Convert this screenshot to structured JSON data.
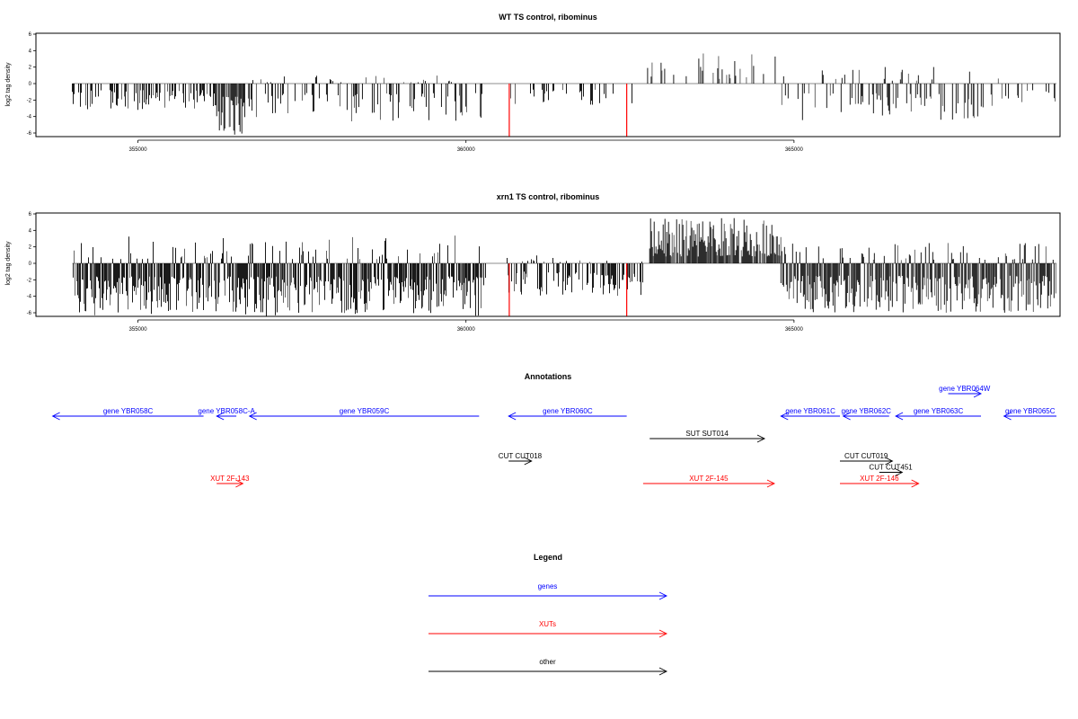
{
  "chart_data": [
    {
      "type": "bar",
      "title": "WT TS control, ribominus",
      "xlabel": "",
      "ylabel": "log2 tag density",
      "xlim": [
        353500,
        369000
      ],
      "ylim": [
        -6,
        6
      ],
      "x_ticks": [
        355000,
        360000,
        365000
      ],
      "x_tick_labels": [
        "355000",
        "360000",
        "365000"
      ],
      "y_ticks": [
        -6,
        -4,
        -2,
        0,
        2,
        4,
        6
      ],
      "y_tick_labels": [
        "-6",
        "-4",
        "-2",
        "0",
        "2",
        "4",
        "6"
      ],
      "baseline_range": [
        354000,
        369000
      ],
      "highlight_color": "#ff0000",
      "highlight_x": [
        360660,
        362450
      ],
      "highlight_y": [
        -6.4,
        -6.4
      ],
      "segments": [
        {
          "start": 354000,
          "end": 356200,
          "density": 0.42,
          "min": -3.2,
          "max": 0,
          "seed": 11
        },
        {
          "start": 356200,
          "end": 356600,
          "density": 0.8,
          "min": -6.3,
          "max": 0,
          "seed": 12
        },
        {
          "start": 356600,
          "end": 360300,
          "density": 0.38,
          "min": -4.6,
          "max": 1.0,
          "seed": 13
        },
        {
          "start": 360600,
          "end": 362700,
          "density": 0.2,
          "min": -2.6,
          "max": 0,
          "seed": 14
        },
        {
          "start": 362700,
          "end": 364800,
          "density": 0.22,
          "min": 0,
          "max": 3.7,
          "seed": 15
        },
        {
          "start": 364800,
          "end": 368200,
          "density": 0.36,
          "min": -4.5,
          "max": 2.3,
          "seed": 16
        },
        {
          "start": 368200,
          "end": 369000,
          "density": 0.18,
          "min": -3.0,
          "max": 0,
          "seed": 17
        }
      ]
    },
    {
      "type": "bar",
      "title": "xrn1 TS control, ribominus",
      "xlabel": "",
      "ylabel": "log2 tag density",
      "xlim": [
        353500,
        369000
      ],
      "ylim": [
        -6,
        6
      ],
      "x_ticks": [
        355000,
        360000,
        365000
      ],
      "x_tick_labels": [
        "355000",
        "360000",
        "365000"
      ],
      "y_ticks": [
        -6,
        -4,
        -2,
        0,
        2,
        4,
        6
      ],
      "y_tick_labels": [
        "-6",
        "-4",
        "-2",
        "0",
        "2",
        "4",
        "6"
      ],
      "baseline_range": [
        354000,
        369000
      ],
      "highlight_color": "#ff0000",
      "highlight_x": [
        360660,
        362450
      ],
      "highlight_y": [
        -6.4,
        -6.4
      ],
      "segments": [
        {
          "start": 354000,
          "end": 360300,
          "density": 0.9,
          "min": -6.4,
          "max": 3.4,
          "seed": 21
        },
        {
          "start": 360600,
          "end": 362700,
          "density": 0.6,
          "min": -4.0,
          "max": 1.0,
          "seed": 22
        },
        {
          "start": 362800,
          "end": 364800,
          "density": 0.9,
          "min": 0,
          "max": 5.5,
          "seed": 23
        },
        {
          "start": 364800,
          "end": 369000,
          "density": 0.9,
          "min": -6.0,
          "max": 2.6,
          "seed": 24
        }
      ]
    }
  ],
  "annotations": {
    "title": "Annotations",
    "xlim": [
      353500,
      369000
    ],
    "features": [
      {
        "label": "gene YBR058C",
        "start": 353700,
        "end": 356000,
        "dir": "left",
        "color": "#0000ff",
        "row": 0
      },
      {
        "label": "gene YBR058C-A",
        "start": 356200,
        "end": 356500,
        "dir": "left",
        "color": "#0000ff",
        "row": 0
      },
      {
        "label": "gene YBR059C",
        "start": 356700,
        "end": 360200,
        "dir": "left",
        "color": "#0000ff",
        "row": 0
      },
      {
        "label": "gene YBR060C",
        "start": 360650,
        "end": 362450,
        "dir": "left",
        "color": "#0000ff",
        "row": 0
      },
      {
        "label": "gene YBR061C",
        "start": 364800,
        "end": 365700,
        "dir": "left",
        "color": "#0000ff",
        "row": 0
      },
      {
        "label": "gene YBR062C",
        "start": 365750,
        "end": 366450,
        "dir": "left",
        "color": "#0000ff",
        "row": 0
      },
      {
        "label": "gene YBR063C",
        "start": 366550,
        "end": 367850,
        "dir": "left",
        "color": "#0000ff",
        "row": 0
      },
      {
        "label": "gene YBR064W",
        "start": 367350,
        "end": 367850,
        "dir": "right",
        "color": "#0000ff",
        "row": -1
      },
      {
        "label": "gene YBR065C",
        "start": 368200,
        "end": 369000,
        "dir": "left",
        "color": "#0000ff",
        "row": 0
      },
      {
        "label": "SUT SUT014",
        "start": 362800,
        "end": 364550,
        "dir": "right",
        "color": "#000000",
        "row": 1
      },
      {
        "label": "CUT CUT018",
        "start": 360650,
        "end": 361000,
        "dir": "right",
        "color": "#000000",
        "row": 2
      },
      {
        "label": "CUT CUT019",
        "start": 365700,
        "end": 366500,
        "dir": "right",
        "color": "#000000",
        "row": 2
      },
      {
        "label": "CUT CUT451",
        "start": 366300,
        "end": 366650,
        "dir": "right",
        "color": "#000000",
        "row": 2.5
      },
      {
        "label": "XUT 2F-143",
        "start": 356200,
        "end": 356600,
        "dir": "right",
        "color": "#ff0000",
        "row": 3
      },
      {
        "label": "XUT 2F-145",
        "start": 362700,
        "end": 364700,
        "dir": "right",
        "color": "#ff0000",
        "row": 3
      },
      {
        "label": "XUT 2F-146",
        "start": 365700,
        "end": 366900,
        "dir": "right",
        "color": "#ff0000",
        "row": 3
      }
    ]
  },
  "legend": {
    "title": "Legend",
    "items": [
      {
        "label": "genes",
        "color": "#0000ff"
      },
      {
        "label": "XUTs",
        "color": "#ff0000"
      },
      {
        "label": "other",
        "color": "#000000"
      }
    ]
  }
}
